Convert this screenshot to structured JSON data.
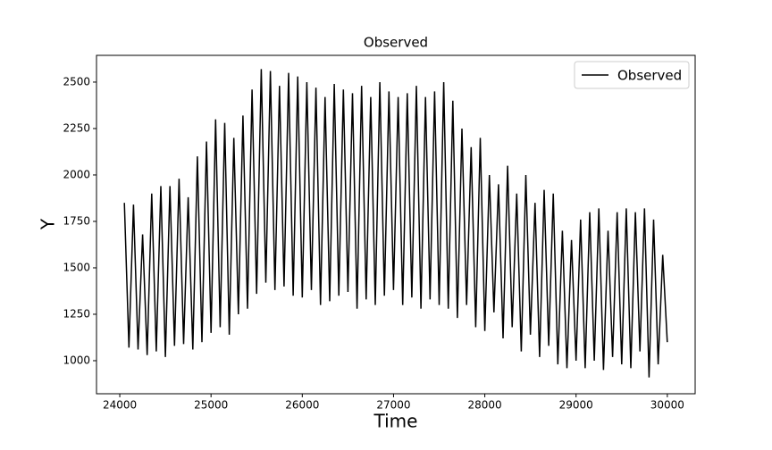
{
  "chart_data": {
    "type": "line",
    "title": "Observed",
    "xlabel": "Time",
    "ylabel": "Y",
    "x": [
      24050,
      24100,
      24150,
      24200,
      24250,
      24300,
      24350,
      24400,
      24450,
      24500,
      24550,
      24600,
      24650,
      24700,
      24750,
      24800,
      24850,
      24900,
      24950,
      25000,
      25050,
      25100,
      25150,
      25200,
      25250,
      25300,
      25350,
      25400,
      25450,
      25500,
      25550,
      25600,
      25650,
      25700,
      25750,
      25800,
      25850,
      25900,
      25950,
      26000,
      26050,
      26100,
      26150,
      26200,
      26250,
      26300,
      26350,
      26400,
      26450,
      26500,
      26550,
      26600,
      26650,
      26700,
      26750,
      26800,
      26850,
      26900,
      26950,
      27000,
      27050,
      27100,
      27150,
      27200,
      27250,
      27300,
      27350,
      27400,
      27450,
      27500,
      27550,
      27600,
      27650,
      27700,
      27750,
      27800,
      27850,
      27900,
      27950,
      28000,
      28050,
      28100,
      28150,
      28200,
      28250,
      28300,
      28350,
      28400,
      28450,
      28500,
      28550,
      28600,
      28650,
      28700,
      28750,
      28800,
      28850,
      28900,
      28950,
      29000,
      29050,
      29100,
      29150,
      29200,
      29250,
      29300,
      29350,
      29400,
      29450,
      29500,
      29550,
      29600,
      29650,
      29700,
      29750,
      29800,
      29850,
      29900,
      29950,
      30000
    ],
    "series": [
      {
        "name": "Observed",
        "color": "#000000",
        "values": [
          1850,
          1070,
          1840,
          1060,
          1680,
          1030,
          1900,
          1050,
          1940,
          1020,
          1940,
          1080,
          1980,
          1090,
          1880,
          1060,
          2100,
          1100,
          2180,
          1150,
          2300,
          1180,
          2280,
          1140,
          2200,
          1250,
          2320,
          1280,
          2460,
          1360,
          2570,
          1420,
          2560,
          1380,
          2480,
          1400,
          2550,
          1350,
          2530,
          1340,
          2500,
          1380,
          2470,
          1300,
          2420,
          1320,
          2490,
          1350,
          2460,
          1370,
          2440,
          1280,
          2480,
          1330,
          2420,
          1300,
          2500,
          1350,
          2450,
          1380,
          2420,
          1300,
          2440,
          1340,
          2480,
          1280,
          2420,
          1330,
          2450,
          1300,
          2500,
          1280,
          2400,
          1230,
          2250,
          1300,
          2150,
          1180,
          2200,
          1160,
          2000,
          1260,
          1950,
          1120,
          2050,
          1180,
          1900,
          1050,
          2000,
          1140,
          1850,
          1020,
          1920,
          1080,
          1900,
          980,
          1700,
          960,
          1650,
          1000,
          1760,
          960,
          1800,
          1000,
          1820,
          950,
          1700,
          1020,
          1800,
          980,
          1820,
          960,
          1800,
          1050,
          1820,
          910,
          1760,
          980,
          1570,
          1100
        ]
      }
    ],
    "xlim": [
      23745,
      30305
    ],
    "ylim": [
      822,
      2644
    ],
    "xticks": [
      24000,
      25000,
      26000,
      27000,
      28000,
      29000,
      30000
    ],
    "yticks": [
      1000,
      1250,
      1500,
      1750,
      2000,
      2250,
      2500
    ],
    "grid": false,
    "legend": "upper right"
  }
}
